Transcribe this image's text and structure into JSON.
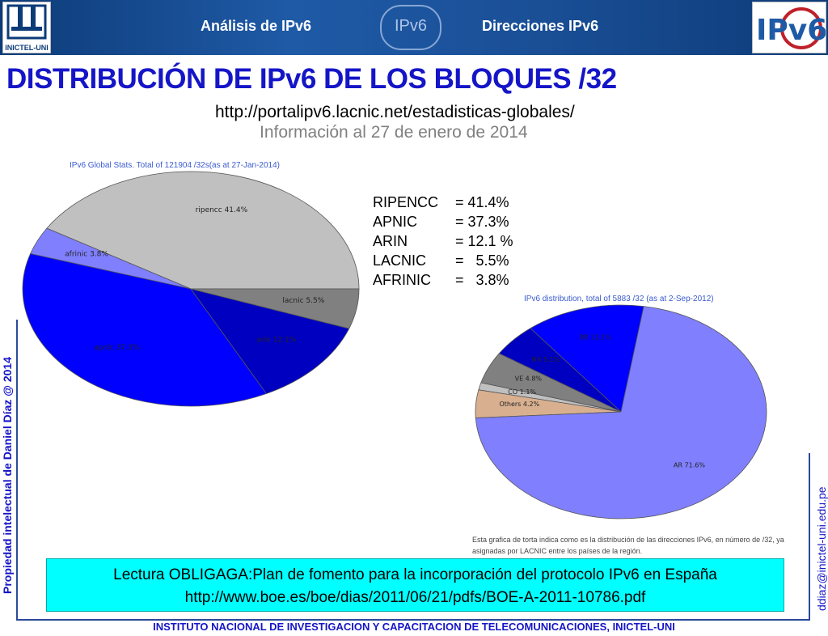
{
  "header": {
    "nav_left": "Análisis de IPv6",
    "nav_right": "Direcciones IPv6",
    "center_logo": "IPv6",
    "left_logo_text": "INICTEL-UNI",
    "right_logo_text": "IPv6"
  },
  "title": "DISTRIBUCIÓN DE IPv6 DE LOS BLOQUES /32",
  "url": "http://portalipv6.lacnic.net/estadisticas-globales/",
  "info": "Información al 27 de enero de 2014",
  "stats": [
    {
      "name": "RIPENCC",
      "value": "= 41.4%"
    },
    {
      "name": "APNIC",
      "value": "= 37.3%"
    },
    {
      "name": "ARIN",
      "value": "= 12.1 %"
    },
    {
      "name": "LACNIC",
      "value": "=   5.5%"
    },
    {
      "name": "AFRINIC",
      "value": "=   3.8%"
    }
  ],
  "side_left": "Propiedad intelectual de Daniel Díaz @ 2014",
  "side_right": "ddiaz@inictel-uni.edu.pe",
  "note": {
    "line1": "Lectura OBLIGAGA:Plan de fomento para la incorporación del protocolo IPv6 en España",
    "line2": "http://www.boe.es/boe/dias/2011/06/21/pdfs/BOE-A-2011-10786.pdf"
  },
  "footer": "INSTITUTO NACIONAL DE INVESTIGACION Y CAPACITACION DE TELECOMUNICACIONES, INICTEL-UNI",
  "chart_data": [
    {
      "type": "pie",
      "title": "IPv6 Global Stats. Total of 121904 /32s(as at 27-Jan-2014)",
      "labels": [
        "ripencc 41.4%",
        "afrinic 3.8%",
        "apnic 37.3%",
        "arin 12.1%",
        "lacnic 5.5%"
      ],
      "values": [
        41.4,
        3.8,
        37.3,
        12.1,
        5.5
      ],
      "colors": [
        "#c0c0c0",
        "#8080ff",
        "#0000ff",
        "#0000c0",
        "#808080"
      ]
    },
    {
      "type": "pie",
      "title": "IPv6 distribution, total of 5883 /32 (as at 2-Sep-2012)",
      "labels": [
        "BR 13.2%",
        "MX 5.1%",
        "VE 4.8%",
        "CO 1.1%",
        "Others 4.2%",
        "AR 71.6%"
      ],
      "values": [
        13.2,
        5.1,
        4.8,
        1.1,
        4.2,
        71.6
      ],
      "colors": [
        "#0000ff",
        "#0000c0",
        "#808080",
        "#c0c0c0",
        "#d8b090",
        "#8080ff"
      ],
      "caption": "Esta grafica de torta indica como es la distribución de las direcciones IPv6, en número de /32, ya asignadas por LACNIC entre los países de la región."
    }
  ]
}
